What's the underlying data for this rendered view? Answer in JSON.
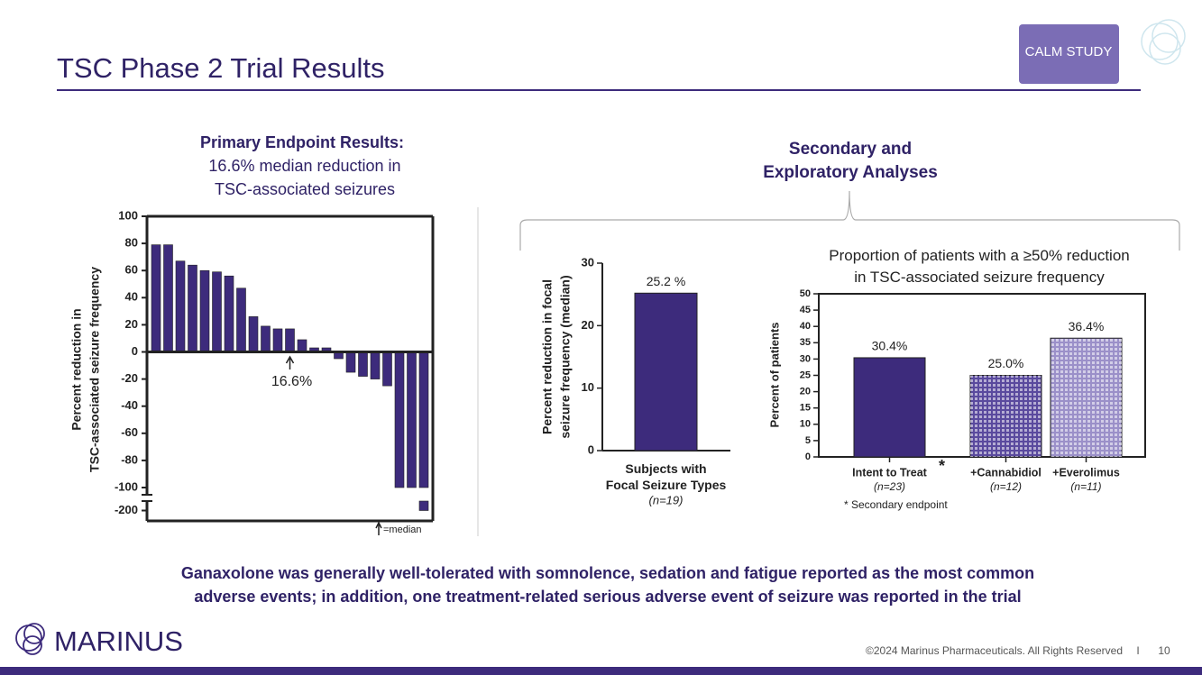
{
  "header": {
    "title": "TSC Phase 2 Trial Results",
    "logo": "CALM STUDY"
  },
  "secondary_heading": [
    "Secondary and",
    "Exploratory Analyses"
  ],
  "chart_data": [
    {
      "type": "bar",
      "title": "Primary Endpoint Results:",
      "subtitle": [
        "16.6% median reduction in",
        "TSC-associated seizures"
      ],
      "ylabel": [
        "Percent reduction in",
        "TSC-associated seizure frequency"
      ],
      "values": [
        79,
        79,
        67,
        64,
        60,
        59,
        56,
        47,
        26,
        19,
        17,
        17,
        9,
        3,
        3,
        -5,
        -15,
        -18,
        -20,
        -25,
        -100,
        -100,
        -200
      ],
      "color": "#3d2b7c",
      "ylim": [
        -220,
        100
      ],
      "ybreak": [
        -180,
        -100
      ],
      "yticks": [
        100,
        80,
        60,
        40,
        20,
        0,
        -20,
        -40,
        -60,
        -80,
        -100,
        -200
      ],
      "annotation": "16.6%",
      "legend": "=median"
    },
    {
      "type": "bar",
      "ylabel": [
        "Percent reduction in focal",
        "seizure frequency (median)"
      ],
      "categories": [
        "Subjects with Focal Seizure Types"
      ],
      "category_notes": [
        "(n=19)"
      ],
      "values": [
        25.2
      ],
      "value_labels": [
        "25.2 %"
      ],
      "colors": [
        "#3d2b7c"
      ],
      "patterned": [
        false
      ],
      "ylim": [
        0,
        30
      ],
      "yticks": [
        0,
        10,
        20,
        30
      ]
    },
    {
      "type": "bar",
      "title": "Proportion of patients with a ≥50% reduction in TSC-associated seizure frequency",
      "ylabel": [
        "Percent of patients"
      ],
      "categories": [
        "Intent to Treat",
        "+Cannabidiol",
        "+Everolimus"
      ],
      "category_notes": [
        "(n=23)",
        "(n=12)",
        "(n=11)"
      ],
      "values": [
        30.4,
        25.0,
        36.4
      ],
      "value_labels": [
        "30.4%",
        "25.0%",
        "36.4%"
      ],
      "colors": [
        "#3d2b7c",
        "#5a4a9e",
        "#9b90c9"
      ],
      "patterned": [
        false,
        true,
        true
      ],
      "ylim": [
        0,
        50
      ],
      "yticks": [
        0,
        5,
        10,
        15,
        20,
        25,
        30,
        35,
        40,
        45,
        50
      ],
      "asterisk": "*",
      "footnote": "* Secondary endpoint"
    }
  ],
  "footer": {
    "statement": [
      "Ganaxolone was generally well-tolerated with somnolence, sedation and fatigue reported as the most common",
      "adverse events; in addition, one treatment-related serious adverse event of seizure was reported in the trial"
    ],
    "brand": "MARINUS",
    "copyright": "©2024 Marinus Pharmaceuticals. All Rights Reserved",
    "separator": "I",
    "page": "10"
  }
}
